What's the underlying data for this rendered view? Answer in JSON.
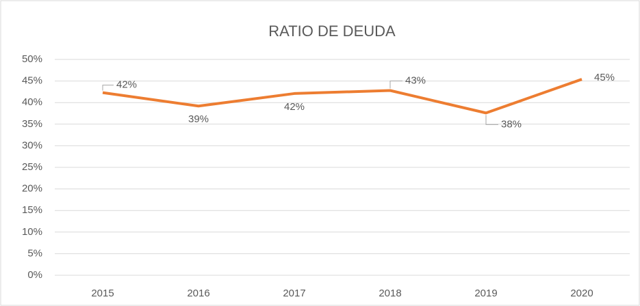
{
  "chart_data": {
    "type": "line",
    "title": "RATIO DE DEUDA",
    "categories": [
      "2015",
      "2016",
      "2017",
      "2018",
      "2019",
      "2020"
    ],
    "series": [
      {
        "name": "Ratio de deuda",
        "color": "#ed7d31",
        "values": [
          42.3,
          39.2,
          42.1,
          42.8,
          37.6,
          45.4
        ],
        "value_labels": [
          "42%",
          "39%",
          "42%",
          "43%",
          "38%",
          "45%"
        ]
      }
    ],
    "ylim": [
      0,
      50
    ],
    "yticks": [
      {
        "value": 0,
        "label": "0%"
      },
      {
        "value": 5,
        "label": "5%"
      },
      {
        "value": 10,
        "label": "10%"
      },
      {
        "value": 15,
        "label": "15%"
      },
      {
        "value": 20,
        "label": "20%"
      },
      {
        "value": 25,
        "label": "25%"
      },
      {
        "value": 30,
        "label": "30%"
      },
      {
        "value": 35,
        "label": "35%"
      },
      {
        "value": 40,
        "label": "40%"
      },
      {
        "value": 45,
        "label": "45%"
      },
      {
        "value": 50,
        "label": "50%"
      }
    ],
    "grid": true
  }
}
